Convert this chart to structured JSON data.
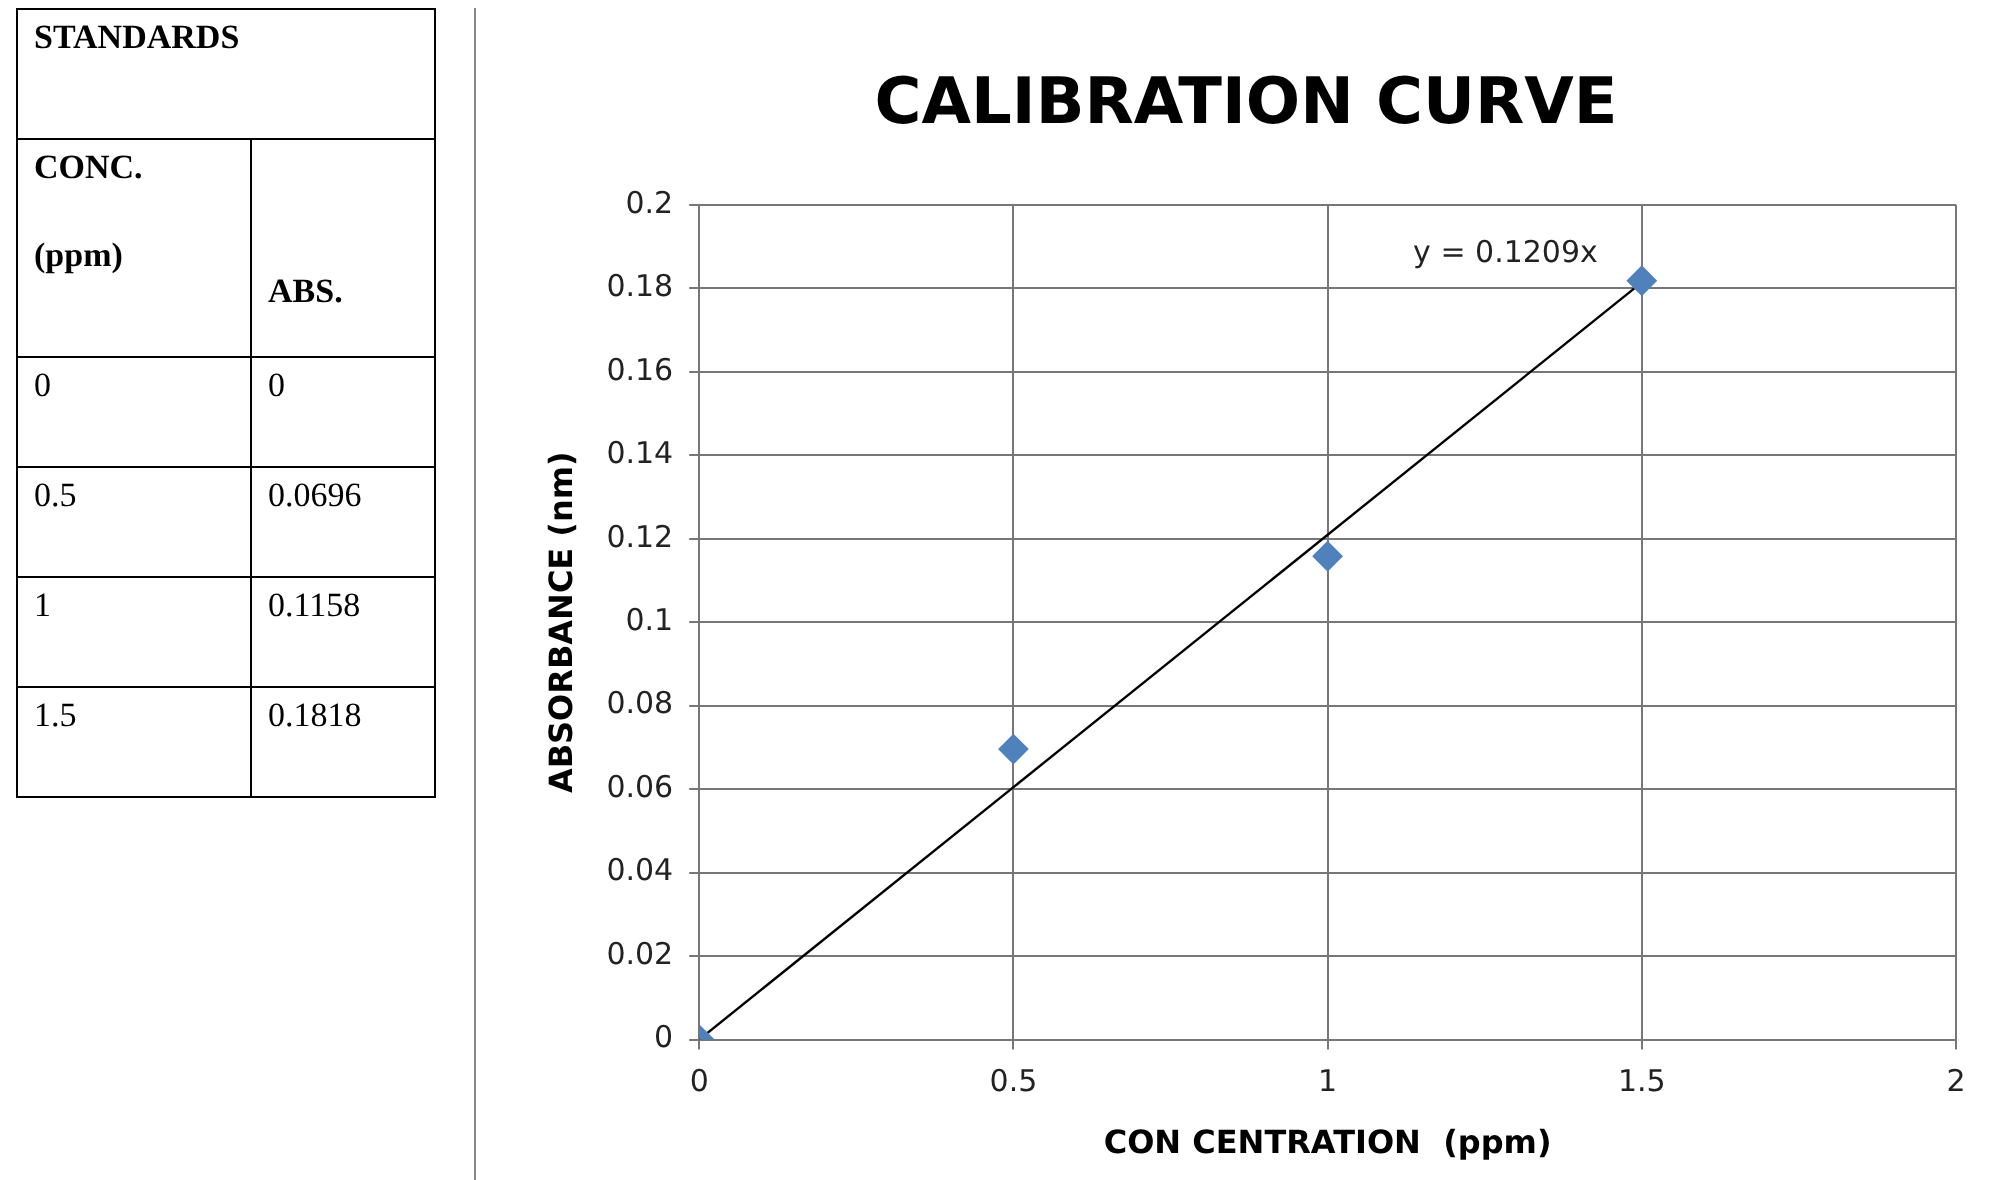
{
  "chart_data": {
    "type": "scatter",
    "title": "CALIBRATION CURVE",
    "xlabel": "CON CENTRATION  (ppm)",
    "ylabel": "ABSORBANCE (nm)",
    "series": [
      {
        "color": "#4f81bd",
        "x": [
          0,
          0.5,
          1,
          1.5
        ],
        "values": [
          0,
          0.0696,
          0.1158,
          0.1818
        ],
        "marker": "diamond"
      },
      {
        "type": "line",
        "color": "#000000",
        "x": [
          0,
          1.5
        ],
        "values": [
          0,
          0.1814
        ],
        "marker": "none"
      }
    ],
    "xlim": [
      0,
      2
    ],
    "xticks": [
      0,
      0.5,
      1,
      1.5,
      2
    ],
    "ylim": [
      0,
      0.2
    ],
    "yticks": [
      0,
      0.02,
      0.04,
      0.06,
      0.08,
      0.1,
      0.12,
      0.14,
      0.16,
      0.18,
      0.2
    ],
    "grid": true,
    "legend": false,
    "annotations": [
      {
        "text": "y = 0.1209x",
        "x": 1.5,
        "y": 0.1814
      },
      "STANDARDS",
      "CONC. (ppm)",
      "ABS.",
      "0",
      "0",
      "0.5",
      "0.0696",
      "1",
      "0.1158",
      "1.5",
      "0.1818"
    ]
  }
}
